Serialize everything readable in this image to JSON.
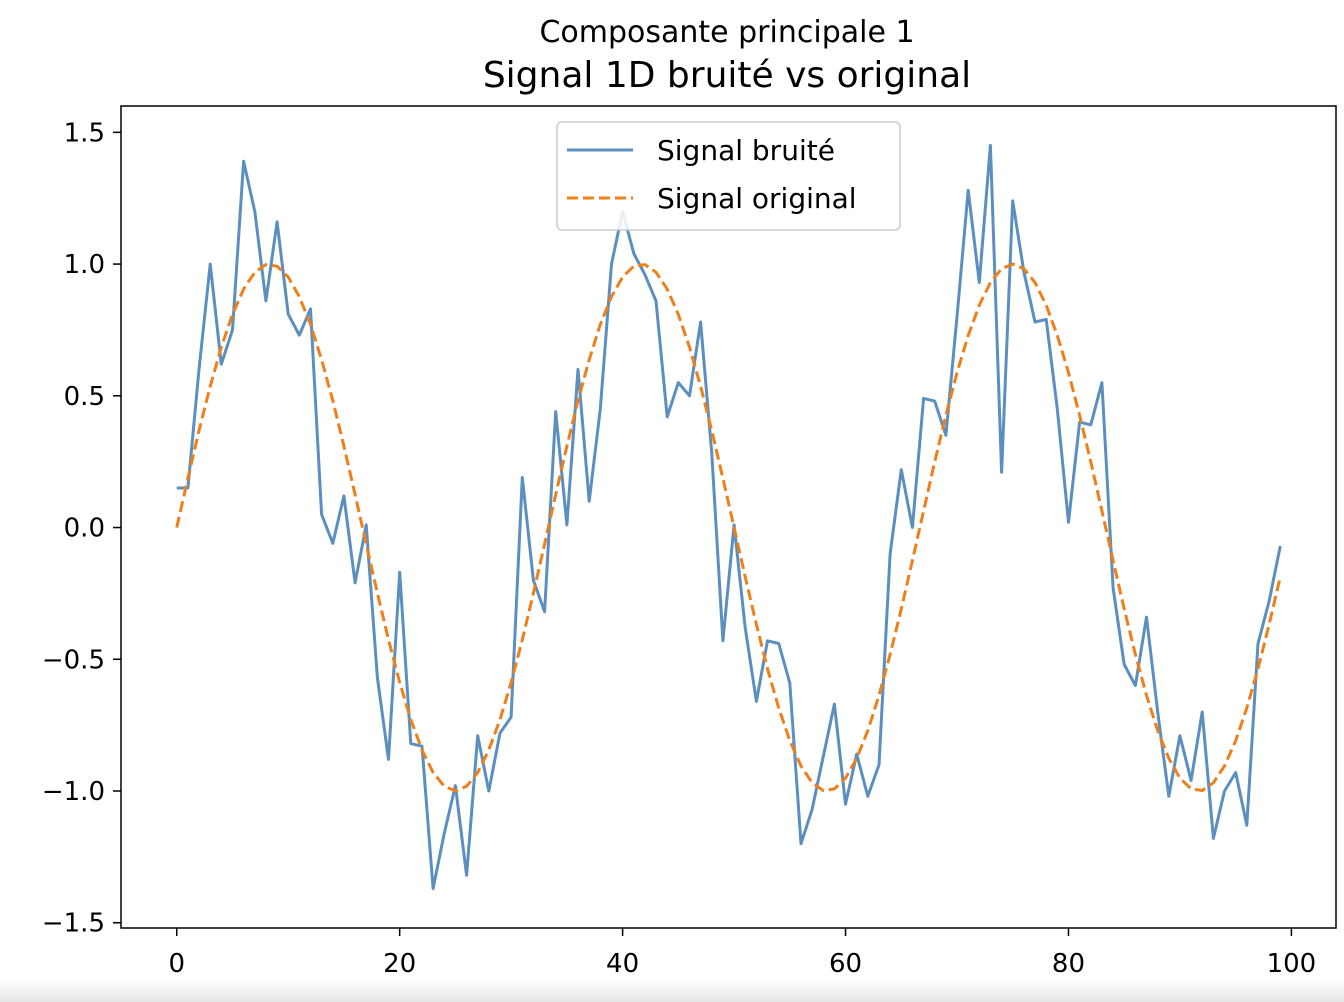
{
  "chart_data": {
    "type": "line",
    "suptitle": "Composante principale 1",
    "title": "Signal 1D bruité vs original",
    "xlabel": "",
    "ylabel": "",
    "xlim": [
      -5,
      104
    ],
    "ylim": [
      -1.52,
      1.6
    ],
    "x_ticks": [
      0,
      20,
      40,
      60,
      80,
      100
    ],
    "y_ticks": [
      1.5,
      1.0,
      0.5,
      0.0,
      -0.5,
      -1.0,
      -1.5
    ],
    "x_tick_labels": [
      "0",
      "20",
      "40",
      "60",
      "80",
      "100"
    ],
    "y_tick_labels": [
      "1.5",
      "1.0",
      "0.5",
      "0.0",
      "−0.5",
      "−1.0",
      "−1.5"
    ],
    "grid": false,
    "legend_position": "upper center",
    "series": [
      {
        "name": "Signal bruité",
        "color": "#5b8fbf",
        "style": "solid",
        "x_start": 0,
        "x_step": 1,
        "values": [
          0.15,
          0.15,
          0.6,
          1.0,
          0.62,
          0.75,
          1.39,
          1.2,
          0.86,
          1.16,
          0.81,
          0.73,
          0.83,
          0.05,
          -0.06,
          0.12,
          -0.21,
          0.01,
          -0.57,
          -0.88,
          -0.17,
          -0.82,
          -0.83,
          -1.37,
          -1.16,
          -0.98,
          -1.32,
          -0.79,
          -1.0,
          -0.78,
          -0.72,
          0.19,
          -0.2,
          -0.32,
          0.44,
          0.01,
          0.6,
          0.1,
          0.45,
          1.0,
          1.2,
          1.04,
          0.96,
          0.86,
          0.42,
          0.55,
          0.5,
          0.78,
          0.28,
          -0.43,
          0.01,
          -0.38,
          -0.66,
          -0.43,
          -0.44,
          -0.59,
          -1.2,
          -1.07,
          -0.87,
          -0.67,
          -1.05,
          -0.86,
          -1.02,
          -0.9,
          -0.1,
          0.22,
          0.0,
          0.49,
          0.48,
          0.35,
          0.8,
          1.28,
          0.93,
          1.45,
          0.21,
          1.24,
          0.97,
          0.78,
          0.79,
          0.45,
          0.02,
          0.4,
          0.39,
          0.55,
          -0.23,
          -0.52,
          -0.6,
          -0.34,
          -0.7,
          -1.02,
          -0.79,
          -0.96,
          -0.7,
          -1.18,
          -1.0,
          -0.93,
          -1.13,
          -0.44,
          -0.28,
          -0.07
        ]
      },
      {
        "name": "Signal original",
        "color": "#ef7f1a",
        "style": "dashed",
        "formula": "sin(2*pi*3*i/100)",
        "x_start": 0,
        "x_step": 1,
        "values": [
          0.0,
          0.187,
          0.368,
          0.536,
          0.685,
          0.809,
          0.905,
          0.969,
          0.998,
          0.992,
          0.951,
          0.876,
          0.771,
          0.637,
          0.482,
          0.309,
          0.125,
          -0.063,
          -0.249,
          -0.426,
          -0.588,
          -0.729,
          -0.844,
          -0.93,
          -0.982,
          -1.0,
          -0.982,
          -0.93,
          -0.844,
          -0.729,
          -0.588,
          -0.426,
          -0.249,
          -0.063,
          0.125,
          0.309,
          0.482,
          0.637,
          0.771,
          0.876,
          0.951,
          0.992,
          0.998,
          0.969,
          0.905,
          0.809,
          0.685,
          0.536,
          0.368,
          0.187,
          0.0,
          -0.187,
          -0.368,
          -0.536,
          -0.685,
          -0.809,
          -0.905,
          -0.969,
          -0.998,
          -0.992,
          -0.951,
          -0.876,
          -0.771,
          -0.637,
          -0.482,
          -0.309,
          -0.125,
          0.063,
          0.249,
          0.426,
          0.588,
          0.729,
          0.844,
          0.93,
          0.982,
          1.0,
          0.982,
          0.93,
          0.844,
          0.729,
          0.588,
          0.426,
          0.249,
          0.063,
          -0.125,
          -0.309,
          -0.482,
          -0.637,
          -0.771,
          -0.876,
          -0.951,
          -0.992,
          -0.998,
          -0.969,
          -0.905,
          -0.809,
          -0.685,
          -0.536,
          -0.368,
          -0.187
        ]
      }
    ]
  }
}
